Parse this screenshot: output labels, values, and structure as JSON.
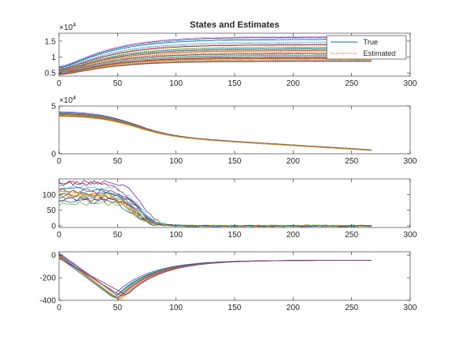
{
  "figure": {
    "title": "States and Estimates"
  },
  "chart_data": [
    {
      "type": "line",
      "title": "States and Estimates",
      "xlim": [
        0,
        300
      ],
      "ylim": [
        0.4,
        1.75
      ],
      "y_exponent_label": "×10",
      "y_exponent_power": "4",
      "xticks": [
        0,
        50,
        100,
        150,
        200,
        250,
        300
      ],
      "yticks": [
        0.5,
        1,
        1.5
      ],
      "ytick_labels": [
        "0.5",
        "1",
        "1.5"
      ],
      "legend": {
        "location": "top-right",
        "entries": [
          {
            "label": "True",
            "style": "solid",
            "color": "#0072BD"
          },
          {
            "label": "Estimated",
            "style": "dotted",
            "color": "#D95319"
          }
        ]
      },
      "x_end": 267,
      "series_model": "saturating rise: y = y0 + (y1 - y0) * (1 - exp(-x/35))^1.6",
      "series": [
        {
          "y0": 0.68,
          "y1": 1.62,
          "color": "#7E2F8E"
        },
        {
          "y0": 0.66,
          "y1": 1.55,
          "color": "#0072BD"
        },
        {
          "y0": 0.62,
          "y1": 1.45,
          "color": "#4DBEEE"
        },
        {
          "y0": 0.6,
          "y1": 1.38,
          "color": "#A2142F"
        },
        {
          "y0": 0.57,
          "y1": 1.3,
          "color": "#77AC30"
        },
        {
          "y0": 0.56,
          "y1": 1.25,
          "color": "#0072BD"
        },
        {
          "y0": 0.55,
          "y1": 1.2,
          "color": "#D95319"
        },
        {
          "y0": 0.53,
          "y1": 1.15,
          "color": "#EDB120"
        },
        {
          "y0": 0.52,
          "y1": 1.1,
          "color": "#7E2F8E"
        },
        {
          "y0": 0.5,
          "y1": 1.05,
          "color": "#77AC30"
        },
        {
          "y0": 0.5,
          "y1": 1.02,
          "color": "#4DBEEE"
        },
        {
          "y0": 0.48,
          "y1": 0.98,
          "color": "#A2142F"
        },
        {
          "y0": 0.47,
          "y1": 0.95,
          "color": "#D95319"
        },
        {
          "y0": 0.46,
          "y1": 0.92,
          "color": "#EDB120"
        },
        {
          "y0": 0.45,
          "y1": 0.88,
          "color": "#0072BD"
        },
        {
          "y0": 0.44,
          "y1": 0.86,
          "color": "#D95319"
        }
      ]
    },
    {
      "type": "line",
      "xlim": [
        0,
        300
      ],
      "ylim": [
        0,
        5
      ],
      "y_exponent_label": "×10",
      "y_exponent_power": "4",
      "xticks": [
        0,
        50,
        100,
        150,
        200,
        250,
        300
      ],
      "yticks": [
        0,
        5
      ],
      "ytick_labels": [
        "0",
        "5"
      ],
      "x_end": 267,
      "series_model": "sigmoid decline followed by slow linear decay",
      "series": [
        {
          "y0": 4.45,
          "color": "#7E2F8E"
        },
        {
          "y0": 4.35,
          "color": "#0072BD"
        },
        {
          "y0": 4.3,
          "color": "#4DBEEE"
        },
        {
          "y0": 4.25,
          "color": "#A2142F"
        },
        {
          "y0": 4.2,
          "color": "#77AC30"
        },
        {
          "y0": 4.15,
          "color": "#D95319"
        },
        {
          "y0": 4.1,
          "color": "#EDB120"
        },
        {
          "y0": 4.05,
          "color": "#0072BD"
        },
        {
          "y0": 4.0,
          "color": "#D95319"
        },
        {
          "y0": 3.95,
          "color": "#EDB120"
        }
      ]
    },
    {
      "type": "line",
      "xlim": [
        0,
        300
      ],
      "ylim": [
        -5,
        150
      ],
      "xticks": [
        0,
        50,
        100,
        150,
        200,
        250,
        300
      ],
      "yticks": [
        0,
        50,
        100
      ],
      "ytick_labels": [
        "0",
        "50",
        "100"
      ],
      "x_end": 267,
      "series_model": "noisy plateau then drop to ~0 near x≈70–90",
      "series": [
        {
          "y0": 140,
          "color": "#7E2F8E"
        },
        {
          "y0": 135,
          "color": "#A2142F"
        },
        {
          "y0": 125,
          "color": "#4DBEEE"
        },
        {
          "y0": 118,
          "color": "#0072BD"
        },
        {
          "y0": 112,
          "color": "#7E2F8E"
        },
        {
          "y0": 108,
          "color": "#D95319"
        },
        {
          "y0": 104,
          "color": "#EDB120"
        },
        {
          "y0": 100,
          "color": "#0072BD"
        },
        {
          "y0": 98,
          "color": "#77AC30"
        },
        {
          "y0": 95,
          "color": "#D95319"
        },
        {
          "y0": 92,
          "color": "#EDB120"
        },
        {
          "y0": 88,
          "color": "#4DBEEE"
        },
        {
          "y0": 85,
          "color": "#A2142F"
        },
        {
          "y0": 80,
          "color": "#0072BD"
        },
        {
          "y0": 72,
          "color": "#77AC30"
        }
      ]
    },
    {
      "type": "line",
      "xlim": [
        0,
        300
      ],
      "ylim": [
        -400,
        30
      ],
      "xticks": [
        0,
        50,
        100,
        150,
        200,
        250,
        300
      ],
      "yticks": [
        -400,
        -200,
        0
      ],
      "ytick_labels": [
        "-400",
        "-200",
        "0"
      ],
      "x_end": 267,
      "series_model": "linear descent to trough near x≈50, then exponential recovery toward ~-50",
      "series": [
        {
          "y0": 20,
          "ymin": -340,
          "xmin": 48,
          "color": "#7E2F8E"
        },
        {
          "y0": 10,
          "ymin": -360,
          "xmin": 50,
          "color": "#0072BD"
        },
        {
          "y0": 5,
          "ymin": -375,
          "xmin": 52,
          "color": "#4DBEEE"
        },
        {
          "y0": 0,
          "ymin": -385,
          "xmin": 50,
          "color": "#A2142F"
        },
        {
          "y0": -5,
          "ymin": -390,
          "xmin": 49,
          "color": "#77AC30"
        },
        {
          "y0": -10,
          "ymin": -395,
          "xmin": 51,
          "color": "#D95319"
        },
        {
          "y0": -15,
          "ymin": -400,
          "xmin": 53,
          "color": "#EDB120"
        },
        {
          "y0": -20,
          "ymin": -380,
          "xmin": 47,
          "color": "#0072BD"
        },
        {
          "y0": -25,
          "ymin": -370,
          "xmin": 55,
          "color": "#D95319"
        },
        {
          "y0": -30,
          "ymin": -355,
          "xmin": 58,
          "color": "#7E2F8E"
        }
      ]
    }
  ]
}
